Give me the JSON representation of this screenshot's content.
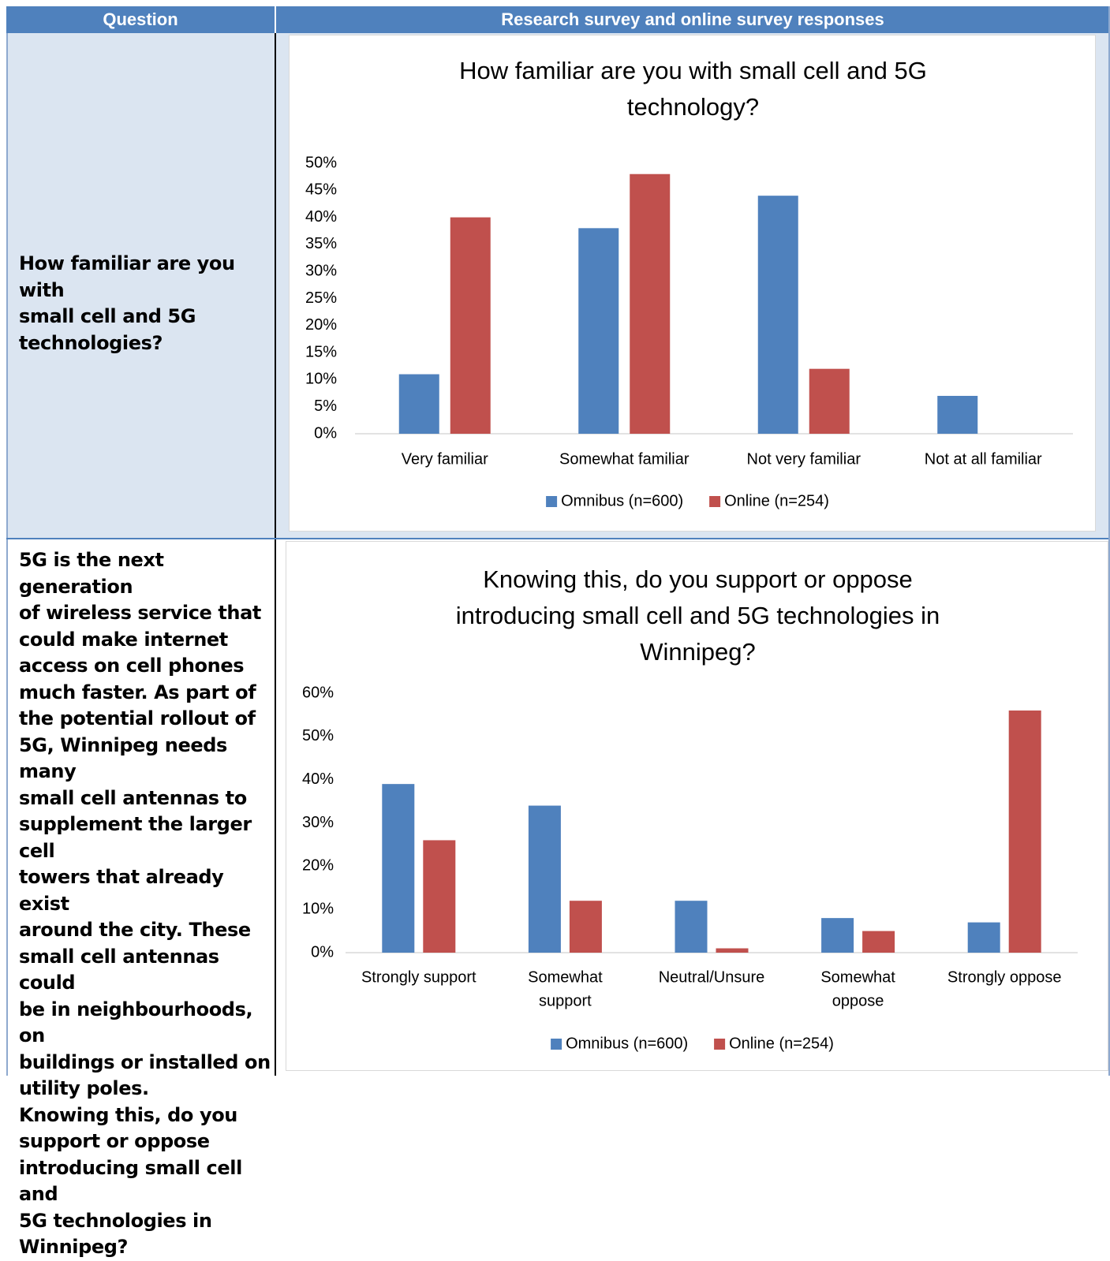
{
  "table": {
    "header_question": "Question",
    "header_responses": "Research survey and online survey responses",
    "row1_question": "How familiar are you with\nsmall cell and 5G\ntechnologies?",
    "row2_question": " 5G is the next generation\nof wireless service that\ncould make internet\naccess on cell phones\nmuch faster. As part of\nthe potential rollout of\n5G, Winnipeg needs many\nsmall cell antennas to\nsupplement the larger cell\ntowers that already exist\naround the city. These\nsmall cell antennas could\nbe in neighbourhoods, on\nbuildings or installed on\nutility poles.\nKnowing this, do you\nsupport or oppose\nintroducing small cell and\n5G technologies in\nWinnipeg?"
  },
  "colors": {
    "omnibus": "#4f81bd",
    "online": "#c0504d",
    "header_bg": "#4f81bd",
    "cell_bg": "#dbe5f1"
  },
  "chart_data": [
    {
      "type": "bar",
      "title": "How familiar are you with small cell and 5G technology?",
      "title_lines": [
        "How familiar are you with small cell and 5G",
        "technology?"
      ],
      "categories": [
        "Very familiar",
        "Somewhat familiar",
        "Not very familiar",
        "Not at all familiar"
      ],
      "category_lines": [
        [
          "Very familiar"
        ],
        [
          "Somewhat familiar"
        ],
        [
          "Not very familiar"
        ],
        [
          "Not at all familiar"
        ]
      ],
      "series": [
        {
          "name": "Omnibus (n=600)",
          "values": [
            11,
            38,
            44,
            7
          ]
        },
        {
          "name": "Online (n=254)",
          "values": [
            40,
            48,
            12,
            0
          ]
        }
      ],
      "yticks": [
        0,
        5,
        10,
        15,
        20,
        25,
        30,
        35,
        40,
        45,
        50
      ],
      "ylim": [
        0,
        50
      ],
      "ytick_suffix": "%",
      "legend": "bottom",
      "grid": false
    },
    {
      "type": "bar",
      "title": "Knowing this, do you support or oppose introducing small cell and 5G technologies in Winnipeg?",
      "title_lines": [
        "Knowing this, do you support or oppose",
        "introducing small cell and 5G technologies in",
        "Winnipeg?"
      ],
      "categories": [
        "Strongly support",
        "Somewhat support",
        "Neutral/Unsure",
        "Somewhat oppose",
        "Strongly oppose"
      ],
      "category_lines": [
        [
          "Strongly support"
        ],
        [
          "Somewhat",
          "support"
        ],
        [
          "Neutral/Unsure"
        ],
        [
          "Somewhat",
          "oppose"
        ],
        [
          "Strongly oppose"
        ]
      ],
      "series": [
        {
          "name": "Omnibus (n=600)",
          "values": [
            39,
            34,
            12,
            8,
            7
          ]
        },
        {
          "name": "Online (n=254)",
          "values": [
            26,
            12,
            1,
            5,
            56
          ]
        }
      ],
      "yticks": [
        0,
        10,
        20,
        30,
        40,
        50,
        60
      ],
      "ylim": [
        0,
        60
      ],
      "ytick_suffix": "%",
      "legend": "bottom",
      "grid": false
    }
  ]
}
